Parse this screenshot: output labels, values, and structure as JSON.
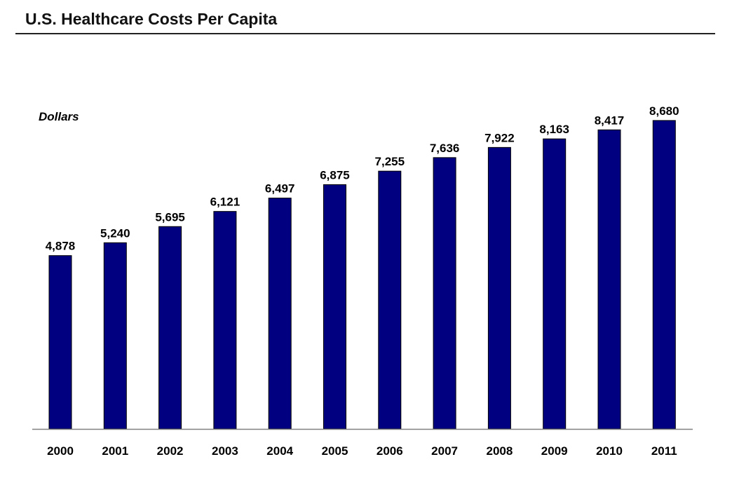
{
  "chart_data": {
    "type": "bar",
    "title": "U.S. Healthcare Costs Per Capita",
    "ylabel": "Dollars",
    "xlabel": "",
    "categories": [
      "2000",
      "2001",
      "2002",
      "2003",
      "2004",
      "2005",
      "2006",
      "2007",
      "2008",
      "2009",
      "2010",
      "2011"
    ],
    "values": [
      4878,
      5240,
      5695,
      6121,
      6497,
      6875,
      7255,
      7636,
      7922,
      8163,
      8417,
      8680
    ],
    "data_labels": [
      "4,878",
      "5,240",
      "5,695",
      "6,121",
      "6,497",
      "6,875",
      "7,255",
      "7,636",
      "7,922",
      "8,163",
      "8,417",
      "8,680"
    ],
    "ylim": [
      0,
      9000
    ],
    "grid": false,
    "legend": "none",
    "bar_color": "#000080"
  }
}
